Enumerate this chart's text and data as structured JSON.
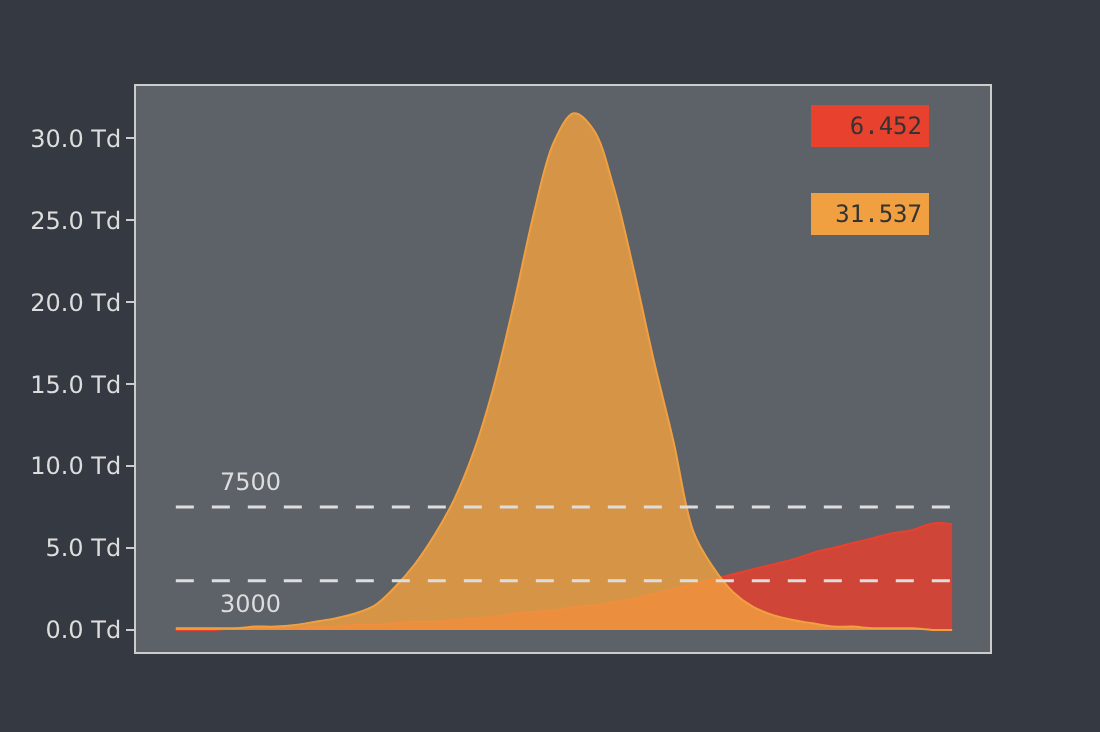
{
  "chart_data": {
    "type": "area",
    "categories": [
      null,
      null,
      null,
      null,
      null,
      null,
      null,
      null,
      null,
      null,
      null,
      null,
      null,
      null,
      null,
      null,
      null,
      null,
      null,
      null,
      null,
      null,
      null,
      null,
      null,
      null,
      null,
      null,
      null,
      null,
      null,
      null,
      null,
      null,
      null,
      null,
      null,
      null,
      null,
      null
    ],
    "series": [
      {
        "color": "#e8412e",
        "values": [
          0.0,
          0.0,
          0.0,
          0.1,
          0.1,
          0.1,
          0.1,
          0.2,
          0.2,
          0.3,
          0.3,
          0.4,
          0.5,
          0.5,
          0.6,
          0.7,
          0.8,
          1.0,
          1.1,
          1.2,
          1.4,
          1.5,
          1.7,
          1.9,
          2.2,
          2.5,
          2.8,
          3.1,
          3.4,
          3.7,
          4.0,
          4.3,
          4.7,
          5.0,
          5.3,
          5.6,
          5.9,
          6.1,
          6.5,
          6.452
        ]
      },
      {
        "color": "#f0a040",
        "values": [
          0.1,
          0.1,
          0.1,
          0.1,
          0.2,
          0.2,
          0.3,
          0.5,
          0.7,
          1.0,
          1.5,
          2.6,
          4.0,
          5.8,
          8.0,
          11.0,
          15.0,
          20.0,
          25.5,
          29.8,
          31.537,
          30.5,
          27.0,
          22.0,
          16.5,
          11.5,
          6.0,
          3.8,
          2.3,
          1.4,
          0.9,
          0.6,
          0.4,
          0.2,
          0.2,
          0.1,
          0.1,
          0.1,
          0.0,
          0.0
        ]
      }
    ],
    "ylim": [
      -1.35,
      33.2
    ],
    "yticks": [
      {
        "value": 0,
        "label": "0.0 Td"
      },
      {
        "value": 5,
        "label": "5.0 Td"
      },
      {
        "value": 10,
        "label": "10.0 Td"
      },
      {
        "value": 15,
        "label": "15.0 Td"
      },
      {
        "value": 20,
        "label": "20.0 Td"
      },
      {
        "value": 25,
        "label": "25.0 Td"
      },
      {
        "value": 30,
        "label": "30.0 Td"
      }
    ],
    "ref_lines": [
      {
        "axis": "y",
        "value": 7.5,
        "label": "7500",
        "color": "#dddddd",
        "line_style": "dashed"
      },
      {
        "axis": "y",
        "value": 3.0,
        "label": "3000",
        "color": "#dddddd",
        "line_style": "dashed"
      }
    ],
    "annotations": [
      "6.452",
      "31.537"
    ],
    "grid": false,
    "tick_labels": "y"
  }
}
